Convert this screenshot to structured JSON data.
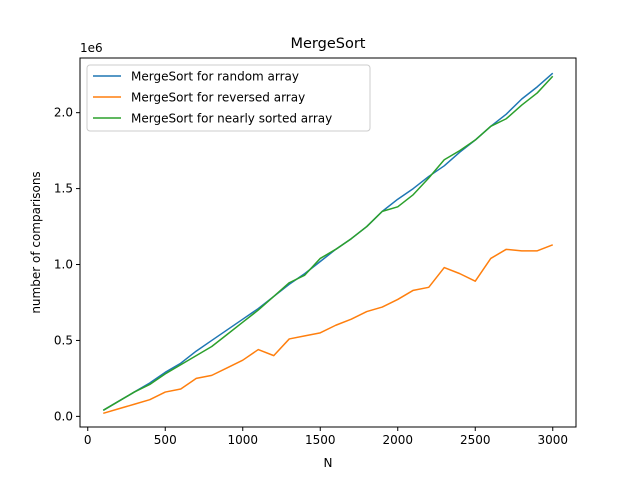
{
  "chart_data": {
    "type": "line",
    "title": "MergeSort",
    "xlabel": "N",
    "ylabel": "number of comparisons",
    "y_multiplier_label": "1e6",
    "xlim": [
      -50,
      3150
    ],
    "ylim": [
      -0.07,
      2.36
    ],
    "x_ticks": [
      0,
      500,
      1000,
      1500,
      2000,
      2500,
      3000
    ],
    "x_tick_labels": [
      "0",
      "500",
      "1000",
      "1500",
      "2000",
      "2500",
      "3000"
    ],
    "y_ticks": [
      0,
      0.5,
      1.0,
      1.5,
      2.0
    ],
    "y_tick_labels": [
      "0.0",
      "0.5",
      "1.0",
      "1.5",
      "2.0"
    ],
    "grid": false,
    "legend_position": "upper-left",
    "x": [
      100,
      200,
      300,
      400,
      500,
      600,
      700,
      800,
      900,
      1000,
      1100,
      1200,
      1300,
      1400,
      1500,
      1600,
      1700,
      1800,
      1900,
      2000,
      2100,
      2200,
      2300,
      2400,
      2500,
      2600,
      2700,
      2800,
      2900,
      3000
    ],
    "series": [
      {
        "name": "MergeSort for random array",
        "color": "#1f77b4",
        "values": [
          0.04,
          0.1,
          0.16,
          0.22,
          0.29,
          0.35,
          0.43,
          0.5,
          0.57,
          0.64,
          0.71,
          0.79,
          0.87,
          0.94,
          1.02,
          1.1,
          1.17,
          1.25,
          1.35,
          1.43,
          1.5,
          1.58,
          1.65,
          1.74,
          1.82,
          1.91,
          1.99,
          2.09,
          2.17,
          2.26
        ]
      },
      {
        "name": "MergeSort for reversed array",
        "color": "#ff7f0e",
        "values": [
          0.02,
          0.05,
          0.08,
          0.11,
          0.16,
          0.18,
          0.25,
          0.27,
          0.32,
          0.37,
          0.44,
          0.4,
          0.51,
          0.53,
          0.55,
          0.6,
          0.64,
          0.69,
          0.72,
          0.77,
          0.83,
          0.85,
          0.98,
          0.94,
          0.89,
          1.04,
          1.1,
          1.09,
          1.09,
          1.13
        ]
      },
      {
        "name": "MergeSort for nearly sorted array",
        "color": "#2ca02c",
        "values": [
          0.04,
          0.1,
          0.16,
          0.21,
          0.28,
          0.34,
          0.4,
          0.46,
          0.54,
          0.62,
          0.7,
          0.79,
          0.88,
          0.93,
          1.04,
          1.1,
          1.17,
          1.25,
          1.35,
          1.38,
          1.46,
          1.57,
          1.69,
          1.75,
          1.82,
          1.91,
          1.96,
          2.05,
          2.13,
          2.24
        ]
      }
    ]
  }
}
